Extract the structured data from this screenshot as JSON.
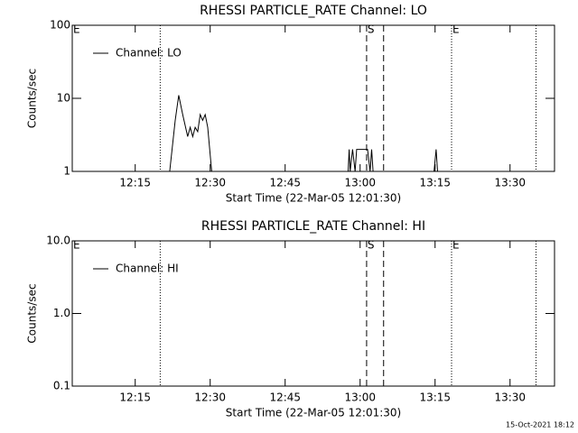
{
  "chart_data": [
    {
      "type": "line",
      "title": "RHESSI PARTICLE_RATE Channel: LO",
      "xlabel": "Start Time (22-Mar-05 12:01:30)",
      "ylabel": "Counts/sec",
      "xlim": [
        2.4,
        98.9
      ],
      "ylim": [
        1,
        100
      ],
      "log_y": true,
      "xticks": [
        {
          "value": 15,
          "label": "12:15"
        },
        {
          "value": 30,
          "label": "12:30"
        },
        {
          "value": 45,
          "label": "12:45"
        },
        {
          "value": 60,
          "label": "13:00"
        },
        {
          "value": 75,
          "label": "13:15"
        },
        {
          "value": 90,
          "label": "13:30"
        }
      ],
      "yticks": [
        1,
        10,
        100
      ],
      "vlines": [
        {
          "x": 20,
          "style": "dotted"
        },
        {
          "x": 61.3,
          "style": "dashed"
        },
        {
          "x": 64.7,
          "style": "dashed"
        },
        {
          "x": 78.3,
          "style": "dotted"
        },
        {
          "x": 95.2,
          "style": "dotted"
        }
      ],
      "annotations": [
        {
          "text": "E",
          "x": 2.4
        },
        {
          "text": "S",
          "x": 61.3
        },
        {
          "text": "E",
          "x": 78.3
        }
      ],
      "legend": "top-left",
      "series": [
        {
          "name": "Channel: LO",
          "color": "#000000",
          "x": [
            21.9,
            23,
            23.7,
            24.5,
            25.5,
            26,
            26.5,
            27,
            27.5,
            28,
            28.5,
            29,
            29.5,
            30.3,
            57.6,
            57.8,
            58,
            58.5,
            59,
            59.3,
            61.5,
            62,
            62.3,
            62.6,
            74.8,
            75.2,
            75.5
          ],
          "values": [
            1,
            5,
            11,
            6,
            3,
            4,
            3,
            4,
            3.5,
            6,
            5,
            6,
            4,
            1,
            1,
            2,
            1,
            2,
            1,
            2,
            2,
            1,
            2,
            1,
            1,
            2,
            1
          ]
        }
      ]
    },
    {
      "type": "line",
      "title": "RHESSI PARTICLE_RATE Channel: HI",
      "xlabel": "Start Time (22-Mar-05 12:01:30)",
      "ylabel": "Counts/sec",
      "xlim": [
        2.4,
        98.9
      ],
      "ylim": [
        0.1,
        10
      ],
      "log_y": true,
      "xticks": [
        {
          "value": 15,
          "label": "12:15"
        },
        {
          "value": 30,
          "label": "12:30"
        },
        {
          "value": 45,
          "label": "12:45"
        },
        {
          "value": 60,
          "label": "13:00"
        },
        {
          "value": 75,
          "label": "13:15"
        },
        {
          "value": 90,
          "label": "13:30"
        }
      ],
      "yticks": [
        0.1,
        {
          "value": 1,
          "label": "1.0"
        },
        {
          "value": 10,
          "label": "10.0"
        }
      ],
      "vlines": [
        {
          "x": 20,
          "style": "dotted"
        },
        {
          "x": 61.3,
          "style": "dashed"
        },
        {
          "x": 64.7,
          "style": "dashed"
        },
        {
          "x": 78.3,
          "style": "dotted"
        },
        {
          "x": 95.2,
          "style": "dotted"
        }
      ],
      "annotations": [
        {
          "text": "E",
          "x": 2.4
        },
        {
          "text": "S",
          "x": 61.3
        },
        {
          "text": "E",
          "x": 78.3
        }
      ],
      "legend": "top-left",
      "series": [
        {
          "name": "Channel: HI",
          "color": "#000000",
          "x": [],
          "values": []
        }
      ]
    }
  ],
  "footer": "15-Oct-2021 18:12"
}
